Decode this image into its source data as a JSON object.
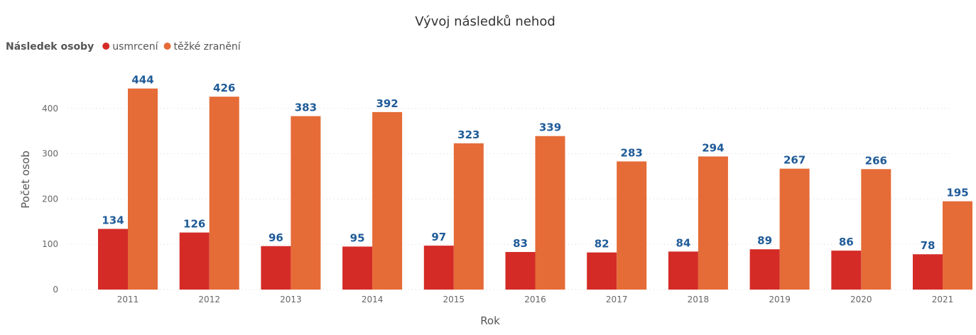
{
  "chart_data": {
    "type": "bar",
    "title": "Vývoj následků nehod",
    "xlabel": "Rok",
    "ylabel": "Počet osob",
    "ylim": [
      0,
      500
    ],
    "yticks": [
      0,
      100,
      200,
      300,
      400
    ],
    "grid": true,
    "legend": {
      "title": "Následek osoby",
      "placement": "top-left"
    },
    "categories": [
      "2011",
      "2012",
      "2013",
      "2014",
      "2015",
      "2016",
      "2017",
      "2018",
      "2019",
      "2020",
      "2021"
    ],
    "series": [
      {
        "name": "usmrcení",
        "color": "#d42b27",
        "values": [
          134,
          126,
          96,
          95,
          97,
          83,
          82,
          84,
          89,
          86,
          78
        ]
      },
      {
        "name": "těžké zranění",
        "color": "#e56b37",
        "values": [
          444,
          426,
          383,
          392,
          323,
          339,
          283,
          294,
          267,
          266,
          195
        ]
      }
    ]
  }
}
